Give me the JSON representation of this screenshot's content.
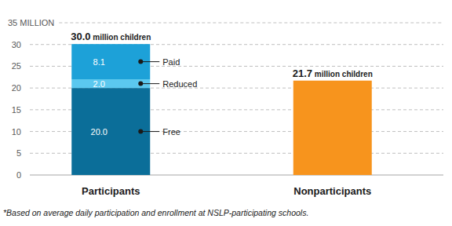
{
  "chart_data": {
    "type": "bar",
    "stacked": true,
    "data_labels": true,
    "grid": true,
    "categories": [
      "Participants",
      "Nonparticipants"
    ],
    "series": [
      {
        "name": "Free",
        "color": "#0b6e99",
        "values": [
          20.0,
          null
        ],
        "value_labels": [
          "20.0",
          null
        ]
      },
      {
        "name": "Reduced",
        "color": "#5bc8ef",
        "values": [
          2.0,
          null
        ],
        "value_labels": [
          "2.0",
          null
        ]
      },
      {
        "name": "Paid",
        "color": "#1da1d8",
        "values": [
          8.1,
          null
        ],
        "value_labels": [
          "8.1",
          null
        ]
      },
      {
        "color": "#f7941d",
        "values": [
          null,
          21.7
        ],
        "data_labels": false
      }
    ],
    "total_labels": [
      "30.0 million children",
      "21.7 million children"
    ],
    "ylim": [
      0,
      35
    ],
    "yticks": [
      0,
      5,
      10,
      15,
      20,
      25,
      30,
      {
        "value": 35,
        "label": "35 MILLION"
      }
    ],
    "footnote": "*Based on average daily participation and enrollment at NSLP-participating schools."
  }
}
